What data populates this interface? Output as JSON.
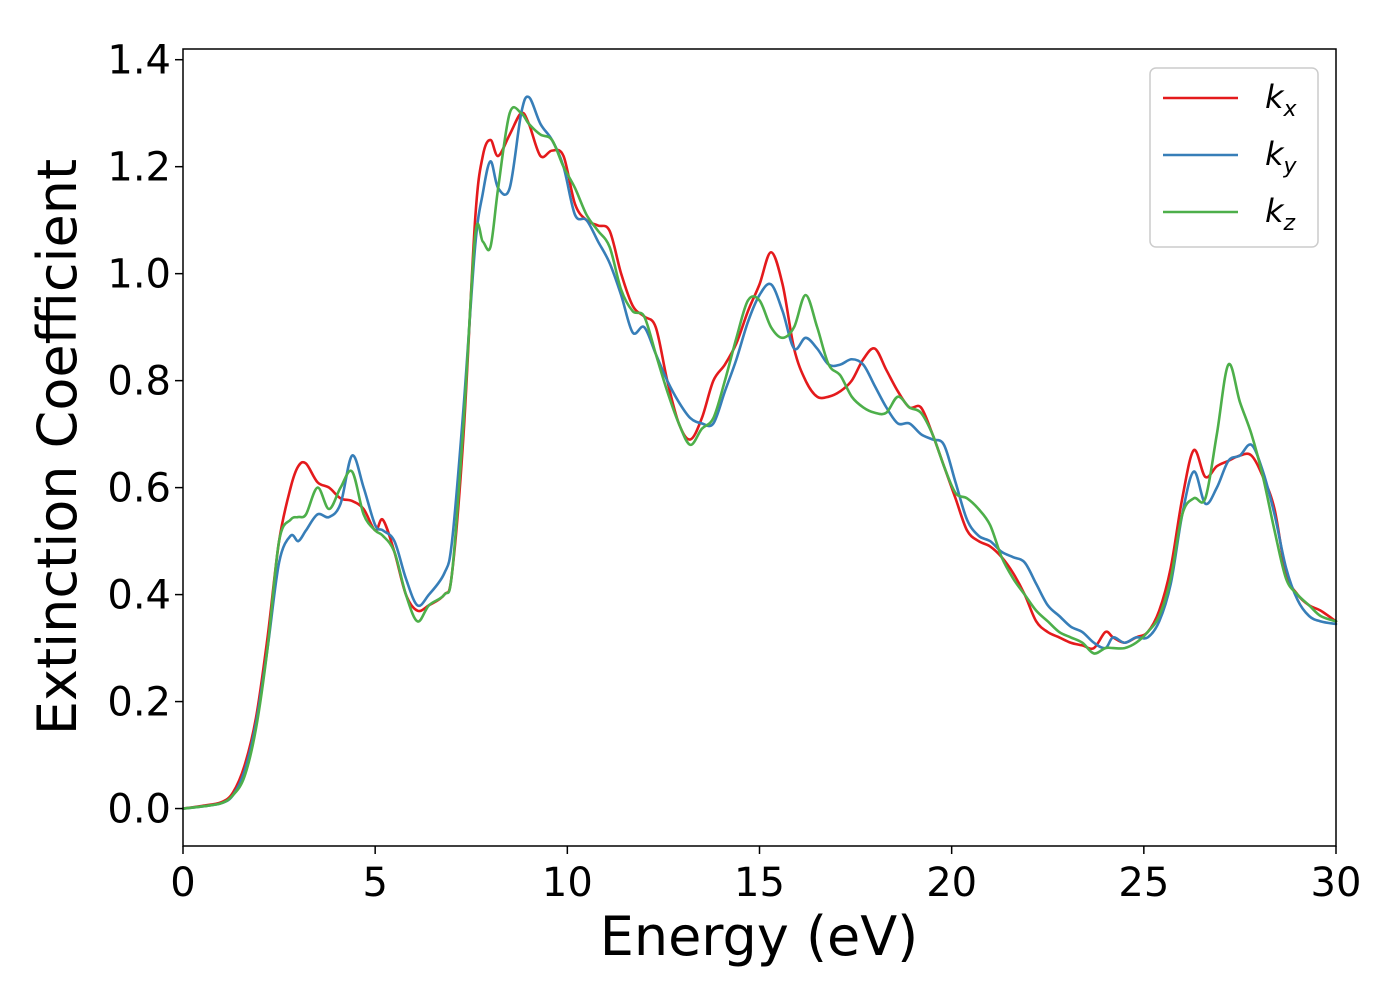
{
  "chart_data": {
    "type": "line",
    "title": "",
    "xlabel": "Energy (eV)",
    "ylabel": "Extinction Coefficient",
    "xlim": [
      0,
      30
    ],
    "ylim": [
      -0.07,
      1.42
    ],
    "xticks": [
      0,
      5,
      10,
      15,
      20,
      25,
      30
    ],
    "yticks": [
      0.0,
      0.2,
      0.4,
      0.6,
      0.8,
      1.0,
      1.2,
      1.4
    ],
    "xtick_labels": [
      "0",
      "5",
      "10",
      "15",
      "20",
      "25",
      "30"
    ],
    "ytick_labels": [
      "0.0",
      "0.2",
      "0.4",
      "0.6",
      "0.8",
      "1.0",
      "1.2",
      "1.4"
    ],
    "grid": false,
    "legend_position": "top-right",
    "series": [
      {
        "name": "k_x",
        "label_main": "k",
        "label_sub": "x",
        "color": "#e41a1c",
        "x": [
          0,
          0.5,
          1,
          1.3,
          1.6,
          1.9,
          2.2,
          2.5,
          2.8,
          3.0,
          3.2,
          3.5,
          3.8,
          4.1,
          4.4,
          4.7,
          5.0,
          5.2,
          5.5,
          5.8,
          6.1,
          6.4,
          6.8,
          7.0,
          7.3,
          7.6,
          7.8,
          8.0,
          8.2,
          8.5,
          8.8,
          9.0,
          9.3,
          9.6,
          9.9,
          10.2,
          10.5,
          10.8,
          11.1,
          11.4,
          11.7,
          12.0,
          12.3,
          12.6,
          12.9,
          13.2,
          13.5,
          13.8,
          14.1,
          14.4,
          14.7,
          15.0,
          15.3,
          15.6,
          15.9,
          16.2,
          16.5,
          16.8,
          17.1,
          17.4,
          17.7,
          18.0,
          18.3,
          18.6,
          18.9,
          19.2,
          19.5,
          19.8,
          20.1,
          20.4,
          20.7,
          21.0,
          21.3,
          21.6,
          21.9,
          22.2,
          22.5,
          22.8,
          23.1,
          23.4,
          23.7,
          24.0,
          24.2,
          24.5,
          24.8,
          25.1,
          25.4,
          25.7,
          26.0,
          26.3,
          26.6,
          26.9,
          27.2,
          27.5,
          27.8,
          28.1,
          28.4,
          28.7,
          29.0,
          29.3,
          29.6,
          30.0
        ],
        "y": [
          0.0,
          0.005,
          0.012,
          0.03,
          0.08,
          0.17,
          0.32,
          0.5,
          0.6,
          0.64,
          0.645,
          0.61,
          0.6,
          0.58,
          0.575,
          0.56,
          0.52,
          0.54,
          0.48,
          0.4,
          0.37,
          0.38,
          0.4,
          0.44,
          0.7,
          1.1,
          1.22,
          1.25,
          1.22,
          1.26,
          1.3,
          1.28,
          1.22,
          1.23,
          1.22,
          1.13,
          1.1,
          1.09,
          1.08,
          1.0,
          0.94,
          0.92,
          0.9,
          0.8,
          0.72,
          0.69,
          0.73,
          0.8,
          0.83,
          0.87,
          0.93,
          0.98,
          1.04,
          0.98,
          0.86,
          0.8,
          0.77,
          0.77,
          0.78,
          0.8,
          0.84,
          0.86,
          0.82,
          0.78,
          0.75,
          0.75,
          0.7,
          0.64,
          0.58,
          0.52,
          0.5,
          0.49,
          0.47,
          0.44,
          0.4,
          0.35,
          0.33,
          0.32,
          0.31,
          0.305,
          0.3,
          0.33,
          0.32,
          0.31,
          0.32,
          0.33,
          0.37,
          0.45,
          0.58,
          0.67,
          0.62,
          0.64,
          0.65,
          0.66,
          0.66,
          0.62,
          0.56,
          0.44,
          0.4,
          0.38,
          0.37,
          0.35
        ]
      },
      {
        "name": "k_y",
        "label_main": "k",
        "label_sub": "y",
        "color": "#377eb8",
        "x": [
          0,
          0.5,
          1,
          1.3,
          1.6,
          1.9,
          2.2,
          2.5,
          2.8,
          3.0,
          3.2,
          3.5,
          3.8,
          4.1,
          4.4,
          4.7,
          5.0,
          5.2,
          5.5,
          5.8,
          6.1,
          6.4,
          6.8,
          7.0,
          7.3,
          7.6,
          7.8,
          8.0,
          8.2,
          8.5,
          8.8,
          9.0,
          9.3,
          9.6,
          9.9,
          10.2,
          10.5,
          10.8,
          11.1,
          11.4,
          11.7,
          12.0,
          12.3,
          12.6,
          12.9,
          13.2,
          13.5,
          13.8,
          14.1,
          14.4,
          14.7,
          15.0,
          15.3,
          15.6,
          15.9,
          16.2,
          16.5,
          16.8,
          17.1,
          17.4,
          17.7,
          18.0,
          18.3,
          18.6,
          18.9,
          19.2,
          19.5,
          19.8,
          20.1,
          20.4,
          20.7,
          21.0,
          21.3,
          21.6,
          21.9,
          22.2,
          22.5,
          22.8,
          23.1,
          23.4,
          23.7,
          24.0,
          24.2,
          24.5,
          24.8,
          25.1,
          25.4,
          25.7,
          26.0,
          26.3,
          26.6,
          26.9,
          27.2,
          27.5,
          27.8,
          28.1,
          28.4,
          28.7,
          29.0,
          29.3,
          29.6,
          30.0
        ],
        "y": [
          0.0,
          0.004,
          0.01,
          0.025,
          0.07,
          0.16,
          0.3,
          0.46,
          0.51,
          0.5,
          0.52,
          0.55,
          0.545,
          0.57,
          0.66,
          0.6,
          0.53,
          0.52,
          0.5,
          0.43,
          0.38,
          0.4,
          0.44,
          0.5,
          0.75,
          1.05,
          1.15,
          1.21,
          1.16,
          1.16,
          1.3,
          1.33,
          1.28,
          1.25,
          1.2,
          1.11,
          1.1,
          1.06,
          1.02,
          0.96,
          0.89,
          0.9,
          0.85,
          0.8,
          0.76,
          0.73,
          0.72,
          0.72,
          0.78,
          0.84,
          0.91,
          0.96,
          0.98,
          0.93,
          0.86,
          0.88,
          0.86,
          0.83,
          0.83,
          0.84,
          0.83,
          0.79,
          0.75,
          0.72,
          0.72,
          0.7,
          0.69,
          0.68,
          0.61,
          0.54,
          0.51,
          0.5,
          0.48,
          0.47,
          0.46,
          0.42,
          0.38,
          0.36,
          0.34,
          0.33,
          0.31,
          0.3,
          0.32,
          0.31,
          0.32,
          0.32,
          0.35,
          0.42,
          0.55,
          0.63,
          0.57,
          0.6,
          0.65,
          0.66,
          0.68,
          0.63,
          0.55,
          0.45,
          0.39,
          0.36,
          0.35,
          0.345
        ]
      },
      {
        "name": "k_z",
        "label_main": "k",
        "label_sub": "z",
        "color": "#4daf4a",
        "x": [
          0,
          0.5,
          1,
          1.3,
          1.6,
          1.9,
          2.2,
          2.5,
          2.8,
          3.0,
          3.2,
          3.5,
          3.8,
          4.1,
          4.4,
          4.7,
          5.0,
          5.2,
          5.5,
          5.8,
          6.1,
          6.4,
          6.8,
          7.0,
          7.3,
          7.6,
          7.8,
          8.0,
          8.2,
          8.5,
          8.8,
          9.0,
          9.3,
          9.6,
          9.9,
          10.2,
          10.5,
          10.8,
          11.1,
          11.4,
          11.7,
          12.0,
          12.3,
          12.6,
          12.9,
          13.2,
          13.5,
          13.8,
          14.1,
          14.4,
          14.7,
          15.0,
          15.3,
          15.6,
          15.9,
          16.2,
          16.5,
          16.8,
          17.1,
          17.4,
          17.7,
          18.0,
          18.3,
          18.6,
          18.9,
          19.2,
          19.5,
          19.8,
          20.1,
          20.4,
          20.7,
          21.0,
          21.3,
          21.6,
          21.9,
          22.2,
          22.5,
          22.8,
          23.1,
          23.4,
          23.7,
          24.0,
          24.2,
          24.5,
          24.8,
          25.1,
          25.4,
          25.7,
          26.0,
          26.3,
          26.6,
          26.9,
          27.2,
          27.5,
          27.8,
          28.1,
          28.4,
          28.7,
          29.0,
          29.3,
          29.6,
          30.0
        ],
        "y": [
          0.0,
          0.004,
          0.01,
          0.025,
          0.06,
          0.15,
          0.3,
          0.5,
          0.54,
          0.545,
          0.55,
          0.6,
          0.56,
          0.6,
          0.63,
          0.55,
          0.52,
          0.51,
          0.48,
          0.4,
          0.35,
          0.38,
          0.4,
          0.44,
          0.72,
          1.07,
          1.06,
          1.05,
          1.16,
          1.3,
          1.3,
          1.28,
          1.26,
          1.25,
          1.2,
          1.16,
          1.11,
          1.08,
          1.05,
          0.97,
          0.93,
          0.92,
          0.85,
          0.78,
          0.72,
          0.68,
          0.71,
          0.73,
          0.8,
          0.88,
          0.95,
          0.95,
          0.9,
          0.88,
          0.9,
          0.96,
          0.9,
          0.83,
          0.81,
          0.77,
          0.75,
          0.74,
          0.74,
          0.77,
          0.75,
          0.74,
          0.7,
          0.64,
          0.59,
          0.58,
          0.56,
          0.53,
          0.47,
          0.43,
          0.4,
          0.37,
          0.35,
          0.33,
          0.32,
          0.31,
          0.29,
          0.3,
          0.3,
          0.3,
          0.31,
          0.33,
          0.36,
          0.43,
          0.55,
          0.58,
          0.58,
          0.7,
          0.83,
          0.76,
          0.7,
          0.62,
          0.52,
          0.43,
          0.4,
          0.38,
          0.36,
          0.35
        ]
      }
    ]
  }
}
